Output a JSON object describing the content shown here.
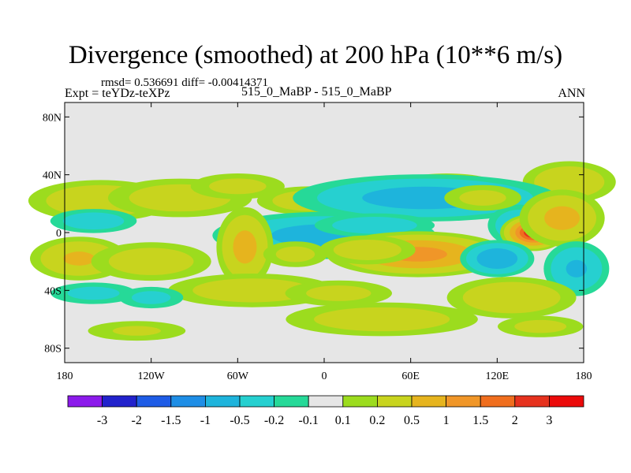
{
  "header": {
    "title": "Divergence (smoothed) at 200 hPa (10**6 m/s)",
    "stats": "rmsd= 0.536691 diff= -0.00414371",
    "experiment": "Expt = teYDz-teXPz",
    "case": "515_0_MaBP - 515_0_MaBP",
    "period": "ANN"
  },
  "chart_data": {
    "type": "heatmap",
    "title": "Divergence (smoothed) at 200 hPa (10**6 m/s)",
    "subtitle": "515_0_MaBP - 515_0_MaBP",
    "units": "10**6 m/s",
    "projection": "cylindrical equidistant",
    "xlim": [
      -180,
      180
    ],
    "ylim": [
      -90,
      90
    ],
    "x_ticks": [
      {
        "value": -180,
        "label": "180"
      },
      {
        "value": -120,
        "label": "120W"
      },
      {
        "value": -60,
        "label": "60W"
      },
      {
        "value": 0,
        "label": "0"
      },
      {
        "value": 60,
        "label": "60E"
      },
      {
        "value": 120,
        "label": "120E"
      },
      {
        "value": 180,
        "label": "180"
      }
    ],
    "y_ticks": [
      {
        "value": 80,
        "label": "80N"
      },
      {
        "value": 40,
        "label": "40N"
      },
      {
        "value": 0,
        "label": "0"
      },
      {
        "value": -40,
        "label": "40S"
      },
      {
        "value": -80,
        "label": "80S"
      }
    ],
    "colorbar": {
      "levels": [
        -3,
        -2,
        -1.5,
        -1,
        -0.5,
        -0.2,
        -0.1,
        0.1,
        0.2,
        0.5,
        1,
        1.5,
        2,
        3
      ],
      "labels": [
        "-3",
        "-2",
        "-1.5",
        "-1",
        "-0.5",
        "-0.2",
        "-0.1",
        "0.1",
        "0.2",
        "0.5",
        "1",
        "1.5",
        "2",
        "3"
      ],
      "colors": [
        "#8c1aeb",
        "#2222cc",
        "#1e5ce6",
        "#1e8ee6",
        "#1eb4dc",
        "#26d0d0",
        "#26d998",
        "#e6e6e6",
        "#9cdc1e",
        "#c8d41e",
        "#e6b41e",
        "#f09628",
        "#f06e1e",
        "#e6321e",
        "#eb0a0a"
      ]
    },
    "anomalies": [
      {
        "lon": -155,
        "lat": 22,
        "value": 0.5,
        "sx": 28,
        "sy": 8
      },
      {
        "lon": -100,
        "lat": 24,
        "value": 0.4,
        "sx": 30,
        "sy": 8
      },
      {
        "lon": -60,
        "lat": 32,
        "value": 0.3,
        "sx": 22,
        "sy": 6
      },
      {
        "lon": -10,
        "lat": 22,
        "value": 0.4,
        "sx": 22,
        "sy": 6
      },
      {
        "lon": 85,
        "lat": 32,
        "value": 0.3,
        "sx": 25,
        "sy": 6
      },
      {
        "lon": 170,
        "lat": 35,
        "value": 0.5,
        "sx": 18,
        "sy": 8
      },
      {
        "lon": -160,
        "lat": 8,
        "value": -0.4,
        "sx": 18,
        "sy": 5
      },
      {
        "lon": 0,
        "lat": -2,
        "value": -0.8,
        "sx": 38,
        "sy": 8
      },
      {
        "lon": 70,
        "lat": 24,
        "value": -0.8,
        "sx": 45,
        "sy": 8
      },
      {
        "lon": 35,
        "lat": 5,
        "value": -0.4,
        "sx": 25,
        "sy": 5
      },
      {
        "lon": 135,
        "lat": 5,
        "value": -0.5,
        "sx": 12,
        "sy": 8
      },
      {
        "lon": 145,
        "lat": 0,
        "value": 2.6,
        "sx": 9,
        "sy": 5
      },
      {
        "lon": 165,
        "lat": 10,
        "value": 0.7,
        "sx": 15,
        "sy": 10
      },
      {
        "lon": 110,
        "lat": 24,
        "value": 0.3,
        "sx": 18,
        "sy": 6
      },
      {
        "lon": 65,
        "lat": -15,
        "value": 1.3,
        "sx": 28,
        "sy": 7
      },
      {
        "lon": 30,
        "lat": -12,
        "value": 0.4,
        "sx": 20,
        "sy": 6
      },
      {
        "lon": -170,
        "lat": -18,
        "value": 0.6,
        "sx": 18,
        "sy": 8
      },
      {
        "lon": -120,
        "lat": -20,
        "value": 0.4,
        "sx": 25,
        "sy": 8
      },
      {
        "lon": -55,
        "lat": -10,
        "value": 0.7,
        "sx": 10,
        "sy": 14
      },
      {
        "lon": -20,
        "lat": -15,
        "value": 0.3,
        "sx": 15,
        "sy": 6
      },
      {
        "lon": 120,
        "lat": -18,
        "value": -1.0,
        "sx": 12,
        "sy": 6
      },
      {
        "lon": 175,
        "lat": -25,
        "value": -0.6,
        "sx": 12,
        "sy": 10
      },
      {
        "lon": 130,
        "lat": -45,
        "value": 0.5,
        "sx": 25,
        "sy": 8
      },
      {
        "lon": -50,
        "lat": -40,
        "value": 0.4,
        "sx": 35,
        "sy": 7
      },
      {
        "lon": 10,
        "lat": -42,
        "value": 0.3,
        "sx": 25,
        "sy": 6
      },
      {
        "lon": -160,
        "lat": -42,
        "value": -0.3,
        "sx": 20,
        "sy": 5
      },
      {
        "lon": -120,
        "lat": -45,
        "value": -0.3,
        "sx": 15,
        "sy": 5
      },
      {
        "lon": 40,
        "lat": -60,
        "value": 0.4,
        "sx": 40,
        "sy": 7
      },
      {
        "lon": 150,
        "lat": -65,
        "value": 0.3,
        "sx": 20,
        "sy": 5
      },
      {
        "lon": -130,
        "lat": -68,
        "value": 0.25,
        "sx": 25,
        "sy": 5
      }
    ]
  }
}
